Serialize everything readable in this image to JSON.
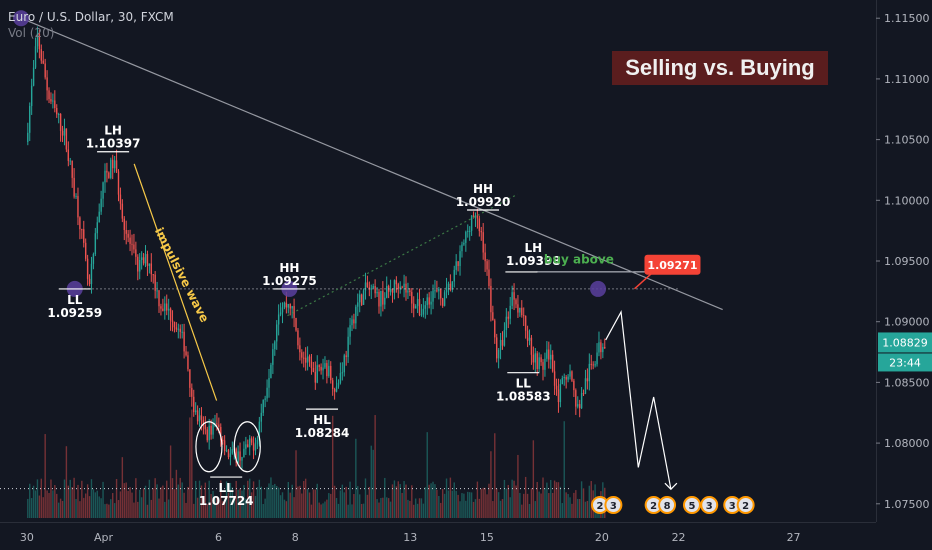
{
  "header": {
    "symbol": "Euro / U.S. Dollar, 30, FXCM",
    "volume_label": "Vol (20)"
  },
  "banner": {
    "text": "Selling vs. Buying",
    "bg": "#5a1d1e"
  },
  "colors": {
    "background": "#131722",
    "up": "#26a69a",
    "down": "#ef5350",
    "annotation_white": "#ffffff",
    "trendline": "#9598a1",
    "impulsive": "#f7c948",
    "buy_above": "#4caf50",
    "price_label_green": "#26a69a",
    "alert_red": "#f44336",
    "marker": "#5b3f9e"
  },
  "chart_data": {
    "type": "candlestick",
    "symbol": "EURUSD",
    "timeframe": "30",
    "y_axis": {
      "range": [
        1.0735,
        1.1165
      ],
      "ticks": [
        1.115,
        1.11,
        1.105,
        1.1,
        1.095,
        1.09,
        1.085,
        1.08,
        1.075
      ],
      "tick_labels": [
        "1.11500",
        "1.11000",
        "1.10500",
        "1.10000",
        "1.09500",
        "1.09000",
        "1.08500",
        "1.08000",
        "1.07500"
      ]
    },
    "x_axis": {
      "ticks": [
        {
          "label": "30",
          "t": 0
        },
        {
          "label": "Apr",
          "t": 4
        },
        {
          "label": "6",
          "t": 10
        },
        {
          "label": "8",
          "t": 14
        },
        {
          "label": "13",
          "t": 20
        },
        {
          "label": "15",
          "t": 24
        },
        {
          "label": "20",
          "t": 30
        },
        {
          "label": "22",
          "t": 34
        },
        {
          "label": "27",
          "t": 40
        }
      ],
      "t_range": [
        -1.4,
        44.3
      ]
    },
    "price_path": [
      [
        0.0,
        1.1048
      ],
      [
        0.6,
        1.1135
      ],
      [
        1.2,
        1.1085
      ],
      [
        2.0,
        1.1055
      ],
      [
        2.8,
        1.0985
      ],
      [
        3.3,
        1.0925
      ],
      [
        4.0,
        1.1015
      ],
      [
        4.6,
        1.1032
      ],
      [
        5.2,
        1.0975
      ],
      [
        5.8,
        1.0945
      ],
      [
        6.4,
        1.0952
      ],
      [
        7.0,
        1.0915
      ],
      [
        7.6,
        1.0905
      ],
      [
        8.3,
        1.088
      ],
      [
        8.8,
        1.0825
      ],
      [
        9.4,
        1.0808
      ],
      [
        10.0,
        1.0815
      ],
      [
        10.6,
        1.079
      ],
      [
        11.2,
        1.079
      ],
      [
        12.0,
        1.0802
      ],
      [
        12.6,
        1.0852
      ],
      [
        13.2,
        1.0912
      ],
      [
        13.8,
        1.0915
      ],
      [
        14.3,
        1.0878
      ],
      [
        15.0,
        1.0855
      ],
      [
        15.6,
        1.0865
      ],
      [
        16.2,
        1.0845
      ],
      [
        16.7,
        1.0875
      ],
      [
        17.2,
        1.0912
      ],
      [
        17.8,
        1.0928
      ],
      [
        18.4,
        1.0918
      ],
      [
        19.0,
        1.0925
      ],
      [
        19.5,
        1.0935
      ],
      [
        20.0,
        1.0922
      ],
      [
        20.6,
        1.0908
      ],
      [
        21.2,
        1.0925
      ],
      [
        21.8,
        1.0918
      ],
      [
        22.3,
        1.0935
      ],
      [
        22.8,
        1.0962
      ],
      [
        23.3,
        1.099
      ],
      [
        23.8,
        1.097
      ],
      [
        24.2,
        1.0922
      ],
      [
        24.6,
        1.0868
      ],
      [
        25.0,
        1.0895
      ],
      [
        25.4,
        1.0925
      ],
      [
        25.9,
        1.0905
      ],
      [
        26.4,
        1.0875
      ],
      [
        26.9,
        1.0862
      ],
      [
        27.3,
        1.0875
      ],
      [
        27.8,
        1.0838
      ],
      [
        28.3,
        1.0862
      ],
      [
        28.8,
        1.0828
      ],
      [
        29.3,
        1.0855
      ],
      [
        29.8,
        1.0875
      ],
      [
        30.2,
        1.0885
      ]
    ],
    "volume_range": [
      0,
      150
    ],
    "last_price": {
      "label": "1.08829",
      "value": 1.08829
    },
    "countdown": "23:44",
    "alert_price": {
      "label": "1.09271",
      "value": 1.09271
    },
    "horizontal_levels": [
      {
        "value": 1.0927,
        "style": "dotted",
        "t_start": 2.8,
        "t_end": 34.0
      },
      {
        "value": 1.0941,
        "style": "solid",
        "t_start": 26.6,
        "t_end": 34.0
      }
    ],
    "volume_baseline_dotted": {
      "t_start": -1.4,
      "t_end": 28.4,
      "volume": 40
    },
    "trendlines": [
      {
        "name": "descending-resistance",
        "from": [
          -0.3,
          1.115
        ],
        "to": [
          36.3,
          1.091
        ],
        "color": "#9598a1",
        "style": "solid"
      },
      {
        "name": "rising-channel",
        "from": [
          13.6,
          1.0905
        ],
        "to": [
          25.6,
          1.1005
        ],
        "color": "#3c7a46",
        "style": "dotted"
      },
      {
        "name": "impulsive-wave-line",
        "from": [
          5.6,
          1.103
        ],
        "to": [
          9.9,
          1.0835
        ],
        "color": "#f7c948",
        "style": "solid"
      }
    ],
    "projection_path": [
      [
        30.2,
        1.0885
      ],
      [
        31.0,
        1.0908
      ],
      [
        31.9,
        1.078
      ],
      [
        32.7,
        1.0838
      ],
      [
        33.6,
        1.0762
      ]
    ],
    "annotations": [
      {
        "type": "LH",
        "value": "1.10397",
        "t": 4.5,
        "y": 1.104,
        "pos": "above"
      },
      {
        "type": "LL",
        "value": "1.09259",
        "t": 2.5,
        "y": 1.0927,
        "pos": "below"
      },
      {
        "type": "HH",
        "value": "1.09275",
        "t": 13.7,
        "y": 1.0927,
        "pos": "above"
      },
      {
        "type": "HL",
        "value": "1.08284",
        "t": 15.4,
        "y": 1.0828,
        "pos": "below"
      },
      {
        "type": "LL",
        "value": "1.07724",
        "t": 10.4,
        "y": 1.0772,
        "pos": "below"
      },
      {
        "type": "HH",
        "value": "1.09920",
        "t": 23.8,
        "y": 1.0992,
        "pos": "above"
      },
      {
        "type": "LH",
        "value": "1.09398",
        "t": 25.8,
        "y": 1.0941,
        "pos": "above-right"
      },
      {
        "type": "LL",
        "value": "1.08583",
        "t": 25.9,
        "y": 1.0858,
        "pos": "below"
      }
    ],
    "text_labels": [
      {
        "text": "impulsive wave",
        "t": 7.9,
        "y": 1.0937,
        "color": "#f7c948",
        "rotate": 63
      },
      {
        "text": "buy above",
        "t": 28.8,
        "y": 1.0948,
        "color": "#4caf50",
        "rotate": 0
      }
    ],
    "ellipses": [
      {
        "t": 9.5,
        "y": 1.0797
      },
      {
        "t": 11.5,
        "y": 1.0797
      }
    ],
    "markers": [
      {
        "t": -0.3,
        "y": 1.115
      },
      {
        "t": 2.5,
        "y": 1.0927
      },
      {
        "t": 13.7,
        "y": 1.0927
      },
      {
        "t": 29.8,
        "y": 1.0927
      }
    ],
    "event_markers": [
      {
        "t": 29.9,
        "text": "2"
      },
      {
        "t": 30.6,
        "text": "3"
      },
      {
        "t": 32.7,
        "text": "2"
      },
      {
        "t": 33.4,
        "text": "8"
      },
      {
        "t": 34.7,
        "text": "5"
      },
      {
        "t": 35.6,
        "text": "3"
      },
      {
        "t": 36.8,
        "text": "3"
      },
      {
        "t": 37.5,
        "text": "2"
      }
    ]
  }
}
